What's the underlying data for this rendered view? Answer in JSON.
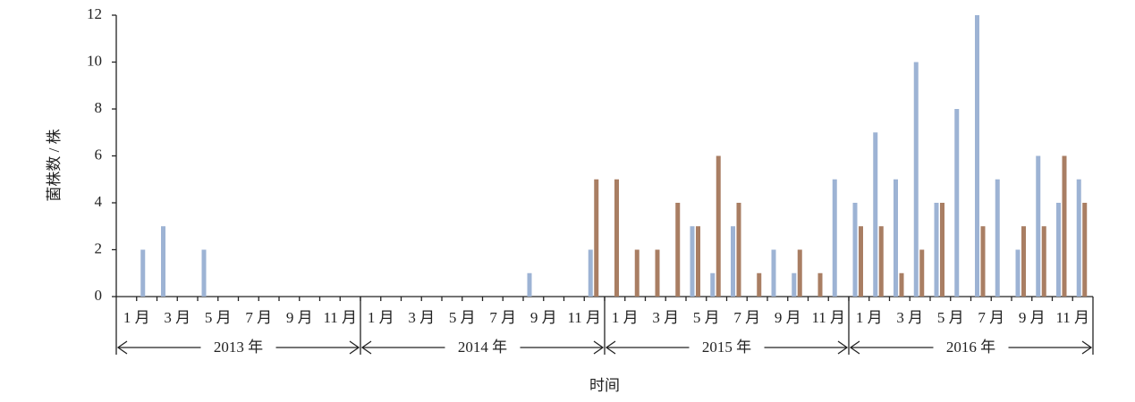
{
  "chart_data": {
    "type": "bar",
    "ylabel": "菌株数 / 株",
    "xlabel": "时间",
    "categories": [
      "1 月",
      null,
      "3 月",
      null,
      "5 月",
      null,
      "7 月",
      null,
      "9 月",
      null,
      "11 月",
      null,
      "1 月",
      null,
      "3 月",
      null,
      "5 月",
      null,
      "7 月",
      null,
      "9 月",
      null,
      "11 月",
      null,
      "1 月",
      null,
      "3 月",
      null,
      "5 月",
      null,
      "7 月",
      null,
      "9 月",
      null,
      "11 月",
      null,
      "1 月",
      null,
      "3 月",
      null,
      "5 月",
      null,
      "7 月",
      null,
      "9 月",
      null,
      "11 月",
      null
    ],
    "groups": [
      "2013 年",
      "2014 年",
      "2015 年",
      "2016 年"
    ],
    "series": [
      {
        "color": "#9db3d4",
        "values": [
          0,
          2,
          3,
          0,
          2,
          0,
          0,
          0,
          0,
          0,
          0,
          0,
          0,
          0,
          0,
          0,
          0,
          0,
          0,
          0,
          1,
          0,
          0,
          2,
          0,
          0,
          0,
          0,
          3,
          1,
          3,
          0,
          2,
          1,
          0,
          5,
          4,
          7,
          5,
          10,
          4,
          8,
          12,
          5,
          2,
          6,
          4,
          5
        ]
      },
      {
        "color": "#a97e63",
        "values": [
          0,
          0,
          0,
          0,
          0,
          0,
          0,
          0,
          0,
          0,
          0,
          0,
          0,
          0,
          0,
          0,
          0,
          0,
          0,
          0,
          0,
          0,
          0,
          5,
          5,
          2,
          2,
          4,
          3,
          6,
          4,
          1,
          0,
          2,
          1,
          0,
          3,
          3,
          1,
          2,
          4,
          0,
          3,
          0,
          3,
          3,
          6,
          4
        ]
      }
    ],
    "ylim": [
      0,
      12
    ],
    "yticks": [
      0,
      2,
      4,
      6,
      8,
      10,
      12
    ]
  }
}
